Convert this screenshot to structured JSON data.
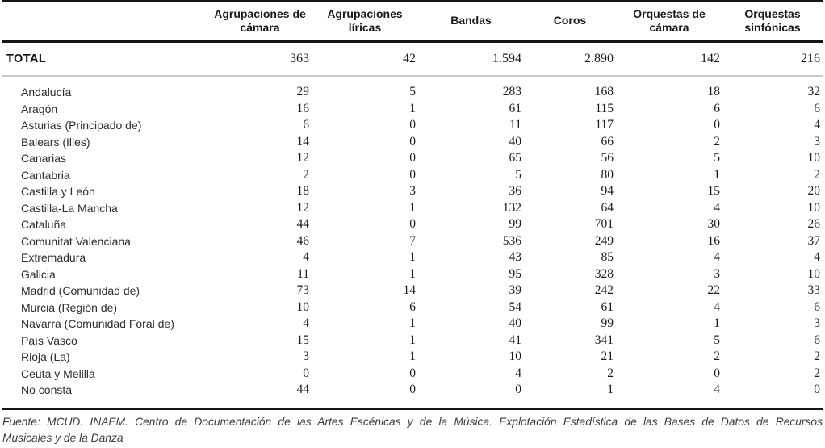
{
  "table": {
    "columns": [
      "Agrupaciones de cámara",
      "Agrupaciones líricas",
      "Bandas",
      "Coros",
      "Orquestas de cámara",
      "Orquestas sinfónicas"
    ],
    "total": {
      "label": "TOTAL",
      "values": [
        "363",
        "42",
        "1.594",
        "2.890",
        "142",
        "216"
      ]
    },
    "rows": [
      {
        "label": "Andalucía",
        "values": [
          "29",
          "5",
          "283",
          "168",
          "18",
          "32"
        ]
      },
      {
        "label": "Aragón",
        "values": [
          "16",
          "1",
          "61",
          "115",
          "6",
          "6"
        ]
      },
      {
        "label": "Asturias (Principado de)",
        "values": [
          "6",
          "0",
          "11",
          "117",
          "0",
          "4"
        ]
      },
      {
        "label": "Balears (Illes)",
        "values": [
          "14",
          "0",
          "40",
          "66",
          "2",
          "3"
        ]
      },
      {
        "label": "Canarias",
        "values": [
          "12",
          "0",
          "65",
          "56",
          "5",
          "10"
        ]
      },
      {
        "label": "Cantabria",
        "values": [
          "2",
          "0",
          "5",
          "80",
          "1",
          "2"
        ]
      },
      {
        "label": "Castilla y León",
        "values": [
          "18",
          "3",
          "36",
          "94",
          "15",
          "20"
        ]
      },
      {
        "label": "Castilla-La Mancha",
        "values": [
          "12",
          "1",
          "132",
          "64",
          "4",
          "10"
        ]
      },
      {
        "label": "Cataluña",
        "values": [
          "44",
          "0",
          "99",
          "701",
          "30",
          "26"
        ]
      },
      {
        "label": "Comunitat Valenciana",
        "values": [
          "46",
          "7",
          "536",
          "249",
          "16",
          "37"
        ]
      },
      {
        "label": "Extremadura",
        "values": [
          "4",
          "1",
          "43",
          "85",
          "4",
          "4"
        ]
      },
      {
        "label": "Galicia",
        "values": [
          "11",
          "1",
          "95",
          "328",
          "3",
          "10"
        ]
      },
      {
        "label": "Madrid (Comunidad de)",
        "values": [
          "73",
          "14",
          "39",
          "242",
          "22",
          "33"
        ]
      },
      {
        "label": "Murcia (Región de)",
        "values": [
          "10",
          "6",
          "54",
          "61",
          "4",
          "6"
        ]
      },
      {
        "label": "Navarra (Comunidad Foral de)",
        "values": [
          "4",
          "1",
          "40",
          "99",
          "1",
          "3"
        ]
      },
      {
        "label": "País Vasco",
        "values": [
          "15",
          "1",
          "41",
          "341",
          "5",
          "6"
        ]
      },
      {
        "label": "Rioja (La)",
        "values": [
          "3",
          "1",
          "10",
          "21",
          "2",
          "2"
        ]
      },
      {
        "label": "Ceuta y Melilla",
        "values": [
          "0",
          "0",
          "4",
          "2",
          "0",
          "2"
        ]
      },
      {
        "label": "No consta",
        "values": [
          "44",
          "0",
          "0",
          "1",
          "4",
          "0"
        ]
      }
    ]
  },
  "footer": {
    "line1": "Fuente: MCUD. INAEM. Centro de Documentación de las Artes Escénicas y de la Música. Explotación Estadística de las Bases de Datos de Recursos",
    "line2": "Musicales y de la Danza"
  },
  "colors": {
    "rule_dark": "#151515",
    "rule_light": "#c8c8c8",
    "text": "#1c1c1c"
  },
  "chart_data": {
    "type": "table",
    "columns": [
      "Agrupaciones de cámara",
      "Agrupaciones líricas",
      "Bandas",
      "Coros",
      "Orquestas de cámara",
      "Orquestas sinfónicas"
    ],
    "total": [
      363,
      42,
      1594,
      2890,
      142,
      216
    ],
    "rows": [
      {
        "label": "Andalucía",
        "values": [
          29,
          5,
          283,
          168,
          18,
          32
        ]
      },
      {
        "label": "Aragón",
        "values": [
          16,
          1,
          61,
          115,
          6,
          6
        ]
      },
      {
        "label": "Asturias (Principado de)",
        "values": [
          6,
          0,
          11,
          117,
          0,
          4
        ]
      },
      {
        "label": "Balears (Illes)",
        "values": [
          14,
          0,
          40,
          66,
          2,
          3
        ]
      },
      {
        "label": "Canarias",
        "values": [
          12,
          0,
          65,
          56,
          5,
          10
        ]
      },
      {
        "label": "Cantabria",
        "values": [
          2,
          0,
          5,
          80,
          1,
          2
        ]
      },
      {
        "label": "Castilla y León",
        "values": [
          18,
          3,
          36,
          94,
          15,
          20
        ]
      },
      {
        "label": "Castilla-La Mancha",
        "values": [
          12,
          1,
          132,
          64,
          4,
          10
        ]
      },
      {
        "label": "Cataluña",
        "values": [
          44,
          0,
          99,
          701,
          30,
          26
        ]
      },
      {
        "label": "Comunitat Valenciana",
        "values": [
          46,
          7,
          536,
          249,
          16,
          37
        ]
      },
      {
        "label": "Extremadura",
        "values": [
          4,
          1,
          43,
          85,
          4,
          4
        ]
      },
      {
        "label": "Galicia",
        "values": [
          11,
          1,
          95,
          328,
          3,
          10
        ]
      },
      {
        "label": "Madrid (Comunidad de)",
        "values": [
          73,
          14,
          39,
          242,
          22,
          33
        ]
      },
      {
        "label": "Murcia (Región de)",
        "values": [
          10,
          6,
          54,
          61,
          4,
          6
        ]
      },
      {
        "label": "Navarra (Comunidad Foral de)",
        "values": [
          4,
          1,
          40,
          99,
          1,
          3
        ]
      },
      {
        "label": "País Vasco",
        "values": [
          15,
          1,
          41,
          341,
          5,
          6
        ]
      },
      {
        "label": "Rioja (La)",
        "values": [
          3,
          1,
          10,
          21,
          2,
          2
        ]
      },
      {
        "label": "Ceuta y Melilla",
        "values": [
          0,
          0,
          4,
          2,
          0,
          2
        ]
      },
      {
        "label": "No consta",
        "values": [
          44,
          0,
          0,
          1,
          4,
          0
        ]
      }
    ]
  }
}
